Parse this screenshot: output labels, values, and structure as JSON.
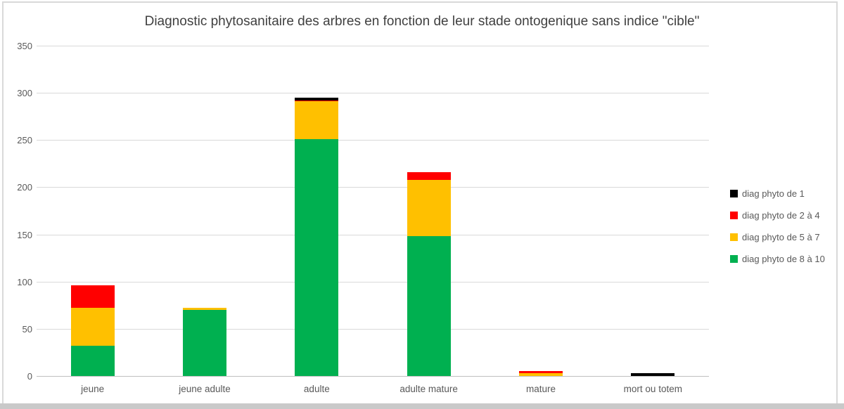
{
  "chart_data": {
    "type": "bar",
    "stacked": true,
    "title": "Diagnostic phytosanitaire des arbres en fonction de leur stade ontogenique sans indice \"cible\"",
    "categories": [
      "jeune",
      "jeune adulte",
      "adulte",
      "adulte mature",
      "mature",
      "mort ou totem"
    ],
    "series": [
      {
        "name": "diag phyto de 8 à 10",
        "color": "#00B050",
        "values": [
          32,
          70,
          251,
          148,
          0,
          0
        ]
      },
      {
        "name": "diag phyto de 5 à 7",
        "color": "#FFC000",
        "values": [
          40,
          2,
          40,
          60,
          3,
          0
        ]
      },
      {
        "name": "diag phyto de 2 à 4",
        "color": "#FF0000",
        "values": [
          24,
          0,
          1,
          8,
          2,
          0
        ]
      },
      {
        "name": "diag phyto de 1",
        "color": "#000000",
        "values": [
          0,
          0,
          3,
          0,
          0,
          3
        ]
      }
    ],
    "totals": [
      96,
      72,
      295,
      216,
      5,
      3
    ],
    "ylim": [
      0,
      350
    ],
    "yticks": [
      0,
      50,
      100,
      150,
      200,
      250,
      300,
      350
    ],
    "grid": true,
    "legend_position": "right",
    "legend_order_top_to_bottom": [
      "diag phyto de 1",
      "diag phyto de 2 à 4",
      "diag phyto de 5 à 7",
      "diag phyto de 8 à 10"
    ]
  },
  "style": {
    "gridline_color": "#d9d9d9",
    "axis_line_color": "#bfbfbf",
    "text_color": "#595959",
    "title_color": "#404040",
    "frame_color": "#d9d9d9",
    "bottom_strip_color": "#c9c9c9"
  }
}
